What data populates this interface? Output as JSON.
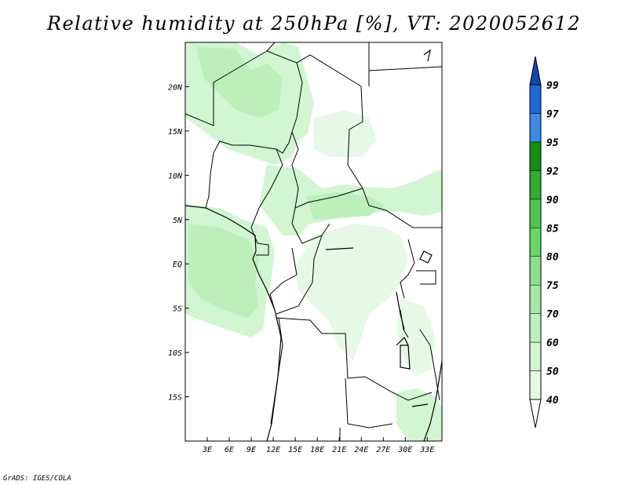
{
  "title": "Relative humidity at 250hPa [%], VT: 2020052612",
  "credit": "GrADS: IGES/COLA",
  "map": {
    "lon_range": [
      0,
      35
    ],
    "lat_range": [
      -20,
      25
    ],
    "lon_ticks": [
      "3E",
      "6E",
      "9E",
      "12E",
      "15E",
      "18E",
      "21E",
      "24E",
      "27E",
      "30E",
      "33E"
    ],
    "lat_ticks": [
      "20N",
      "15N",
      "10N",
      "5N",
      "EQ",
      "5S",
      "10S",
      "15S"
    ]
  },
  "colorbar": {
    "levels": [
      "40",
      "50",
      "60",
      "70",
      "75",
      "80",
      "85",
      "90",
      "92",
      "95",
      "97",
      "99"
    ],
    "colors": [
      "#ffffff",
      "#e6f9e6",
      "#d2f5d2",
      "#bdefbd",
      "#a4e8a4",
      "#8be08b",
      "#64d764",
      "#4cc64c",
      "#2fae2f",
      "#118f11",
      "#3c8ae6",
      "#1f68d2",
      "#1147b0"
    ]
  }
}
